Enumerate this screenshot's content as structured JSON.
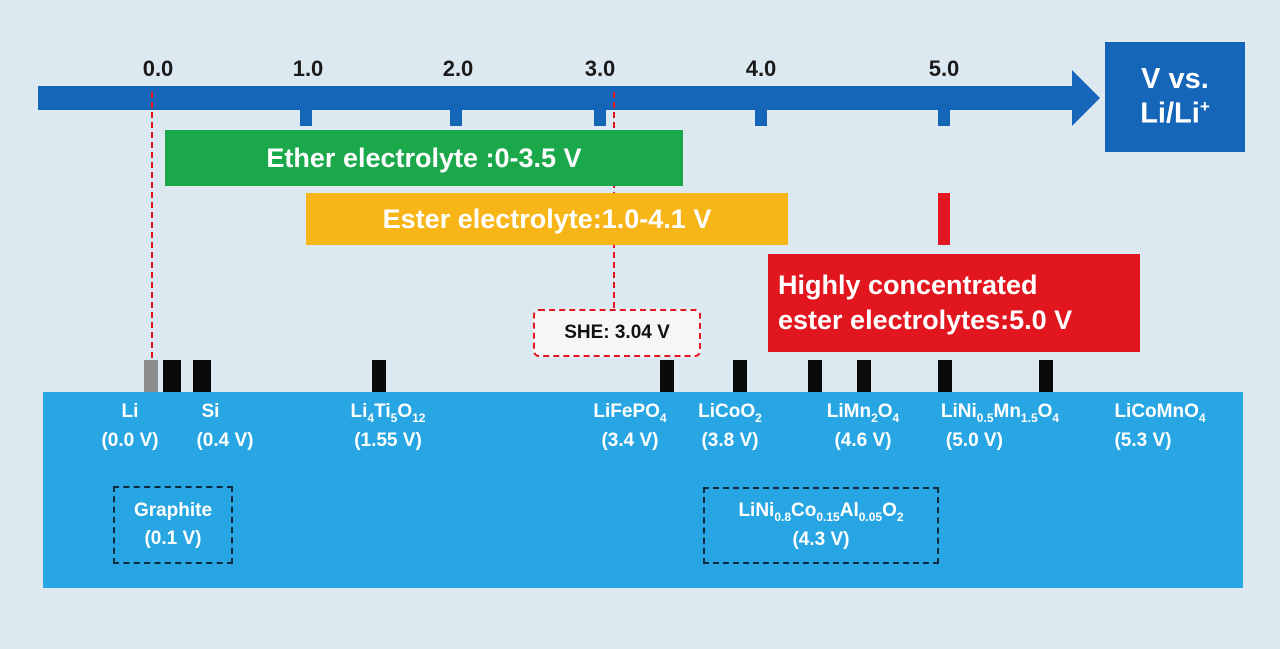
{
  "axis": {
    "title_line1": "V vs.",
    "title_line2": "Li/Li",
    "title_sup": "+",
    "ticks": [
      "0.0",
      "1.0",
      "2.0",
      "3.0",
      "4.0",
      "5.0"
    ],
    "tick_values": [
      0,
      1,
      2,
      3,
      4,
      5
    ],
    "color": "#1565b8"
  },
  "bands": {
    "ether": "Ether electrolyte :0-3.5 V",
    "ester": "Ester electrolyte:1.0-4.1 V",
    "hc_line1": "Highly concentrated",
    "hc_line2": "ester electrolytes:5.0 V"
  },
  "she": {
    "label": "SHE: 3.04 V"
  },
  "materials": {
    "li": {
      "name": "Li",
      "value": "(0.0 V)"
    },
    "si": {
      "name": "Si",
      "value": "(0.4 V)"
    },
    "lto": {
      "value": "(1.55 V)"
    },
    "lfp": {
      "value": "(3.4 V)"
    },
    "lco": {
      "value": "(3.8 V)"
    },
    "lmo": {
      "value": "(4.6 V)"
    },
    "lnmo": {
      "value": "(5.0 V)"
    },
    "lcmo": {
      "value": "(5.3 V)"
    },
    "graphite": {
      "name": "Graphite",
      "value": "(0.1 V)"
    },
    "nca": {
      "value": "(4.3 V)"
    }
  },
  "colors": {
    "ether": "#1aa84a",
    "ester": "#f7b517",
    "concentrated": "#e1161e",
    "panel": "#27a6e3",
    "background": "#dde9f1"
  }
}
